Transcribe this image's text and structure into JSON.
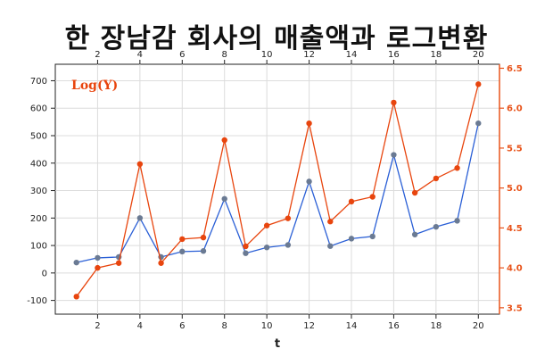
{
  "chart_data": {
    "type": "line",
    "title": "한 장남감 회사의 매출액과 로그변환",
    "xlabel": "t",
    "x": [
      1,
      2,
      3,
      4,
      5,
      6,
      7,
      8,
      9,
      10,
      11,
      12,
      13,
      14,
      15,
      16,
      17,
      18,
      19,
      20
    ],
    "xlim": [
      0,
      21
    ],
    "x_ticks": [
      2,
      4,
      6,
      8,
      10,
      12,
      14,
      16,
      18,
      20
    ],
    "left_axis": {
      "ylim": [
        -150,
        760
      ],
      "ticks": [
        -100,
        0,
        100,
        200,
        300,
        400,
        500,
        600,
        700
      ]
    },
    "right_axis": {
      "ylim": [
        3.42,
        6.55
      ],
      "ticks": [
        3.5,
        4.0,
        4.5,
        5.0,
        5.5,
        6.0,
        6.5
      ]
    },
    "grid": true,
    "series": [
      {
        "axis": "left",
        "color": "#2a5fd6",
        "marker_color": "#6a7a93",
        "values": [
          38,
          55,
          58,
          200,
          58,
          78,
          80,
          270,
          72,
          93,
          102,
          333,
          98,
          125,
          133,
          430,
          140,
          168,
          190,
          545
        ]
      },
      {
        "name": "Log(Y)",
        "axis": "right",
        "color": "#e8450e",
        "marker_color": "#e8450e",
        "values": [
          3.64,
          4.0,
          4.06,
          5.3,
          4.06,
          4.36,
          4.38,
          5.6,
          4.27,
          4.53,
          4.62,
          5.81,
          4.58,
          4.83,
          4.89,
          6.07,
          4.94,
          5.12,
          5.25,
          6.3
        ]
      }
    ],
    "legend": "top-left"
  }
}
